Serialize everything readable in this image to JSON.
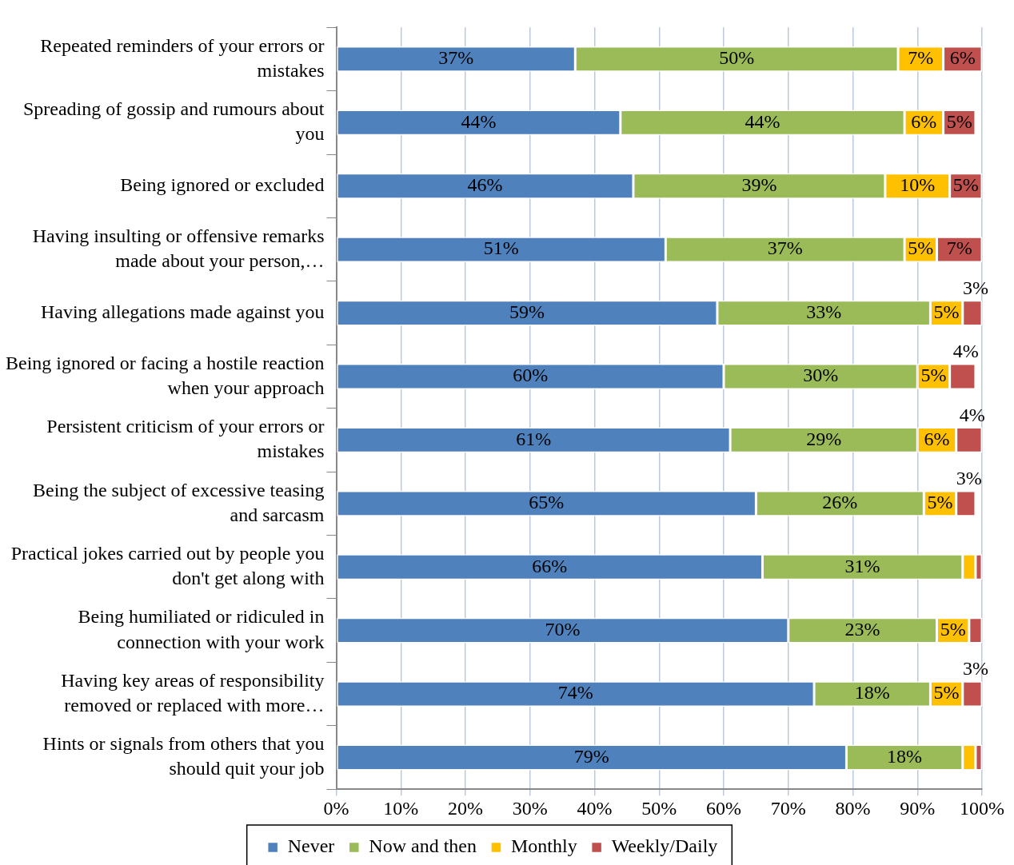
{
  "chart_data": {
    "type": "bar",
    "orientation": "horizontal",
    "stacked": true,
    "categories": [
      "Repeated reminders of your errors or mistakes",
      "Spreading of gossip and rumours about you",
      "Being ignored or excluded",
      "Having insulting or offensive remarks made about your person,…",
      "Having allegations made against you",
      "Being ignored or facing a hostile reaction when your approach",
      "Persistent criticism of your errors or mistakes",
      "Being the subject of excessive teasing and sarcasm",
      "Practical jokes carried out by people you don't get along with",
      "Being humiliated or ridiculed in connection with your work",
      "Having key areas of responsibility removed or replaced with more…",
      "Hints or signals from others that you should quit your job"
    ],
    "series": [
      {
        "name": "Never",
        "color": "#4f81bd",
        "values": [
          37,
          44,
          46,
          51,
          59,
          60,
          61,
          65,
          66,
          70,
          74,
          79
        ],
        "value_labels": [
          "37%",
          "44%",
          "46%",
          "51%",
          "59%",
          "60%",
          "61%",
          "65%",
          "66%",
          "70%",
          "74%",
          "79%"
        ]
      },
      {
        "name": "Now and then",
        "color": "#9bbb59",
        "values": [
          50,
          44,
          39,
          37,
          33,
          30,
          29,
          26,
          31,
          23,
          18,
          18
        ],
        "value_labels": [
          "50%",
          "44%",
          "39%",
          "37%",
          "33%",
          "30%",
          "29%",
          "26%",
          "31%",
          "23%",
          "18%",
          "18%"
        ]
      },
      {
        "name": "Monthly",
        "color": "#ffc000",
        "values": [
          7,
          6,
          10,
          5,
          5,
          5,
          6,
          5,
          2,
          5,
          5,
          2
        ],
        "value_labels": [
          "7%",
          "6%",
          "10%",
          "5%",
          "5%",
          "5%",
          "6%",
          "5%",
          null,
          "5%",
          "5%",
          null
        ]
      },
      {
        "name": "Weekly/Daily",
        "color": "#c0504d",
        "values": [
          6,
          5,
          5,
          7,
          3,
          4,
          4,
          3,
          1,
          2,
          3,
          1
        ],
        "value_labels": [
          "6%",
          "5%",
          "5%",
          "7%",
          "3%",
          "4%",
          "4%",
          "3%",
          null,
          null,
          "3%",
          null
        ]
      }
    ],
    "xlim": [
      0,
      100
    ],
    "xticks": [
      {
        "value": 0,
        "label": "0%"
      },
      {
        "value": 10,
        "label": "10%"
      },
      {
        "value": 20,
        "label": "20%"
      },
      {
        "value": 30,
        "label": "30%"
      },
      {
        "value": 40,
        "label": "40%"
      },
      {
        "value": 50,
        "label": "50%"
      },
      {
        "value": 60,
        "label": "60%"
      },
      {
        "value": 70,
        "label": "70%"
      },
      {
        "value": 80,
        "label": "80%"
      },
      {
        "value": 90,
        "label": "90%"
      },
      {
        "value": 100,
        "label": "100%"
      }
    ],
    "grid": "x",
    "legend": "bottom"
  }
}
